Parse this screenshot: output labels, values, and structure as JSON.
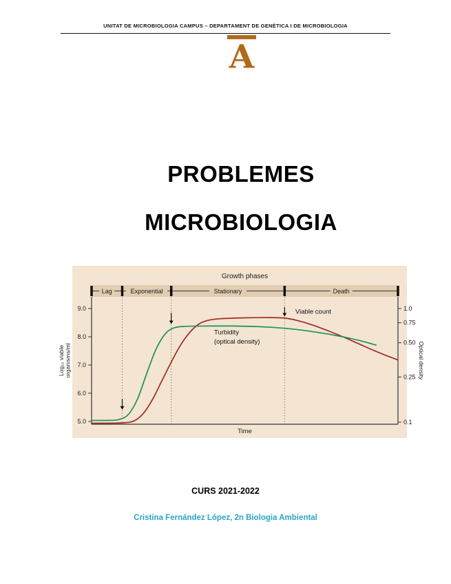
{
  "page": {
    "header": "UNITAT DE MICROBIOLOGIA CAMPUS – DEPARTAMENT DE GENÈTICA I DE MICROBIOLOGIA",
    "logo_letter": "A",
    "logo_color": "#b06a1c",
    "title_line1": "PROBLEMES",
    "title_line2": "MICROBIOLOGIA",
    "course": "CURS 2021-2022",
    "author": "Cristina Fernández López, 2n Biologia Ambiental",
    "author_color": "#29a5c8"
  },
  "chart_data": {
    "type": "line",
    "title": "Growth phases",
    "xlabel": "Time",
    "ylabel_left_line1": "Log₁₀ viable",
    "ylabel_left_line2": "organisms/ml",
    "ylabel_right": "Optical density",
    "background": "#f3e5d2",
    "band_color": "#e2cdb2",
    "left_axis": {
      "min": 4.9,
      "max": 9.35,
      "ticks": [
        9.0,
        8.0,
        7.0,
        6.0,
        5.0
      ],
      "labels": [
        "9.0",
        "8.0",
        "7.0",
        "6.0",
        "5.0"
      ]
    },
    "right_axis": {
      "scale": "log",
      "min": 0.1,
      "max": 1.0,
      "ticks": [
        1.0,
        0.75,
        0.5,
        0.25,
        0.1
      ],
      "labels": [
        "1.0",
        "0.75",
        "0.50",
        "0.25",
        "0.1"
      ]
    },
    "phases": [
      {
        "label": "Lag",
        "start": 0,
        "end": 10
      },
      {
        "label": "Exponential",
        "start": 10,
        "end": 26
      },
      {
        "label": "Stationary",
        "start": 26,
        "end": 63
      },
      {
        "label": "Death",
        "start": 63,
        "end": 100
      }
    ],
    "series": [
      {
        "name": "Viable count",
        "color": "#a5281f",
        "x": [
          0,
          10,
          14,
          17,
          20,
          23,
          26,
          29,
          32,
          35,
          38,
          42,
          50,
          58,
          63,
          67,
          72,
          77,
          82,
          87,
          92,
          97,
          100
        ],
        "y": [
          4.94,
          4.95,
          5.03,
          5.3,
          5.8,
          6.45,
          7.1,
          7.7,
          8.15,
          8.45,
          8.58,
          8.64,
          8.67,
          8.68,
          8.66,
          8.58,
          8.42,
          8.22,
          8.0,
          7.76,
          7.52,
          7.3,
          7.18
        ]
      },
      {
        "name": "Turbidity (optical density)",
        "color": "#1e9150",
        "x": [
          0,
          6,
          9,
          12,
          15,
          18,
          21,
          24,
          27,
          31,
          38,
          46,
          54,
          63,
          71,
          79,
          87,
          93
        ],
        "y": [
          5.04,
          5.04,
          5.07,
          5.25,
          5.8,
          6.7,
          7.55,
          8.1,
          8.32,
          8.37,
          8.38,
          8.38,
          8.36,
          8.3,
          8.2,
          8.06,
          7.88,
          7.7
        ]
      }
    ],
    "curve_labels": [
      {
        "text": "Viable count",
        "x": 66.5,
        "v": 8.82
      },
      {
        "text": "Turbidity",
        "x": 40,
        "v": 8.08
      },
      {
        "text": "(optical density)",
        "x": 40,
        "v": 7.76
      }
    ],
    "arrows": [
      {
        "x": 10,
        "tail": 5.8,
        "tip": 5.42
      },
      {
        "x": 26,
        "tail": 8.85,
        "tip": 8.45
      },
      {
        "x": 63,
        "tail": 9.05,
        "tip": 8.72
      }
    ]
  }
}
